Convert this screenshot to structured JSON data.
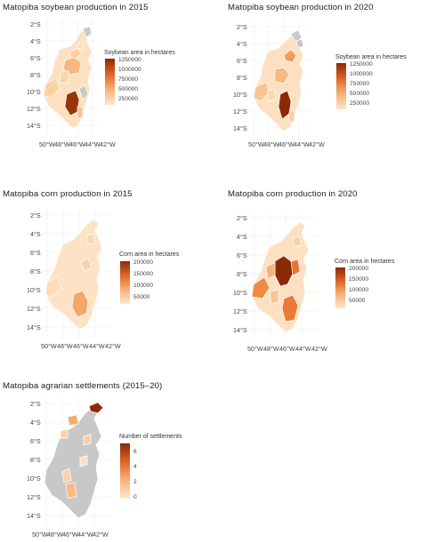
{
  "panels": [
    {
      "id": "soy2015",
      "title": "Matopiba soybean production in 2015",
      "legend_title": "Soybean area in hectares",
      "legend_labels": [
        "1250000",
        "1000000",
        "750000",
        "500000",
        "250000"
      ],
      "y_ticks": [
        "2°S",
        "4°S",
        "6°S",
        "8°S",
        "10°S",
        "12°S",
        "14°S"
      ],
      "x_ticks": [
        "50°W",
        "48°W",
        "46°W",
        "44°W",
        "42°W"
      ],
      "colors": {
        "low": "#fde6cf",
        "high": "#8a2a04"
      }
    },
    {
      "id": "soy2020",
      "title": "Matopiba soybean production in 2020",
      "legend_title": "Soybean area in hectares",
      "legend_labels": [
        "1250000",
        "1000000",
        "750000",
        "500000",
        "250000"
      ],
      "y_ticks": [
        "2°S",
        "4°S",
        "6°S",
        "8°S",
        "10°S",
        "12°S",
        "14°S"
      ],
      "x_ticks": [
        "50°W",
        "48°W",
        "46°W",
        "44°W",
        "42°W"
      ],
      "colors": {
        "low": "#fde6cf",
        "high": "#8a2a04"
      }
    },
    {
      "id": "corn2015",
      "title": "Matopiba corn production in 2015",
      "legend_title": "Corn area in hectares",
      "legend_labels": [
        "200000",
        "150000",
        "100000",
        "50000"
      ],
      "y_ticks": [
        "2°S",
        "4°S",
        "6°S",
        "8°S",
        "10°S",
        "12°S",
        "14°S"
      ],
      "x_ticks": [
        "50°W",
        "48°W",
        "46°W",
        "44°W",
        "42°W"
      ],
      "colors": {
        "low": "#fde6cf",
        "high": "#8a2a04"
      }
    },
    {
      "id": "corn2020",
      "title": "Matopiba corn production in 2020",
      "legend_title": "Corn area in hectares",
      "legend_labels": [
        "200000",
        "150000",
        "100000",
        "50000"
      ],
      "y_ticks": [
        "2°S",
        "4°S",
        "6°S",
        "8°S",
        "10°S",
        "12°S",
        "14°S"
      ],
      "x_ticks": [
        "50°W",
        "48°W",
        "46°W",
        "44°W",
        "42°W"
      ],
      "colors": {
        "low": "#fde6cf",
        "high": "#8a2a04"
      }
    },
    {
      "id": "settle",
      "title": "Matopiba agrarian settlements (2015–20)",
      "legend_title": "Number of settlements",
      "legend_labels": [
        "6",
        "4",
        "2",
        "0"
      ],
      "y_ticks": [
        "2°S",
        "4°S",
        "6°S",
        "8°S",
        "10°S",
        "12°S",
        "14°S"
      ],
      "x_ticks": [
        "50°W",
        "48°W",
        "46°W",
        "44°W",
        "42°W"
      ],
      "colors": {
        "low": "#fde6cf",
        "high": "#8a2a04",
        "na": "#c8c8c8"
      }
    }
  ]
}
